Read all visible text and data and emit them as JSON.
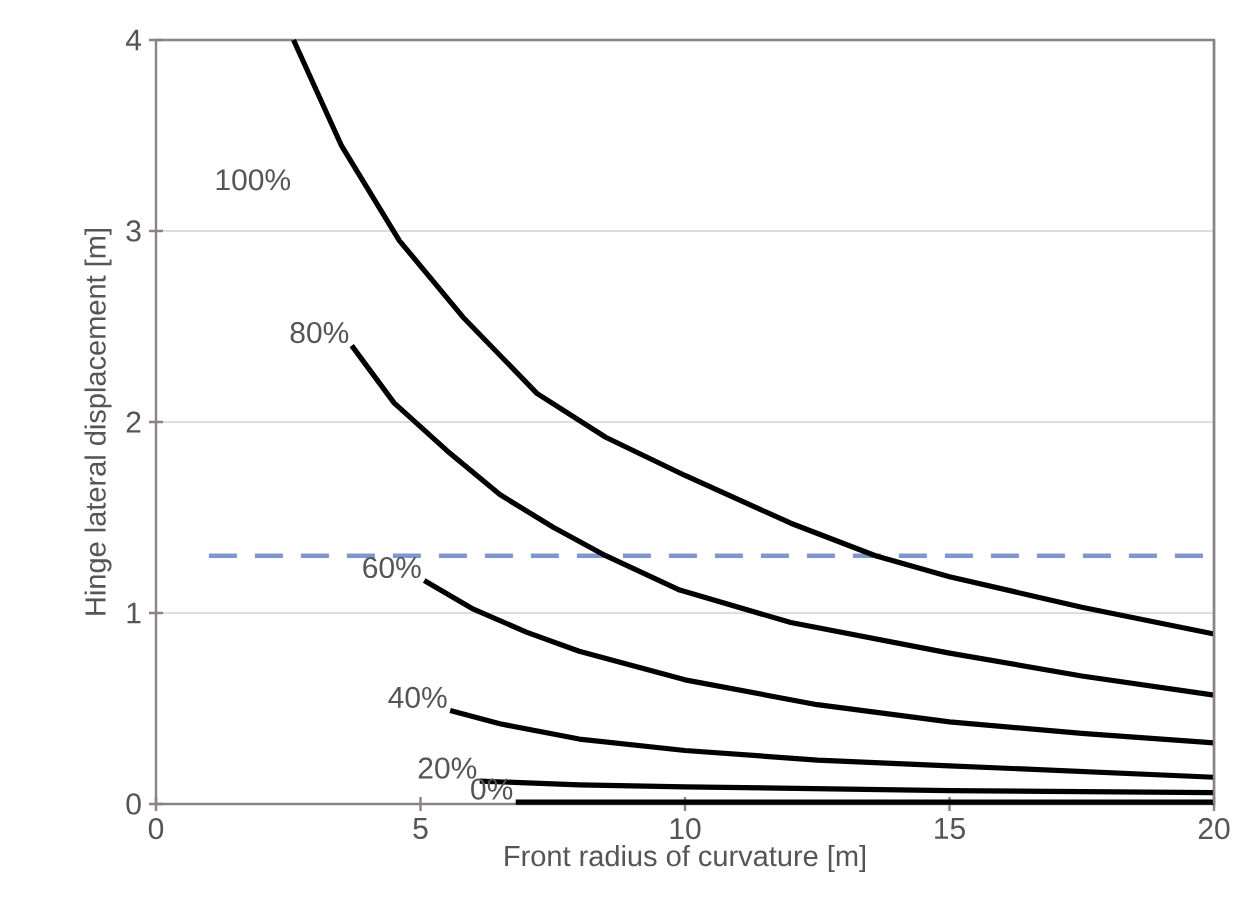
{
  "chart_data": {
    "type": "line",
    "xlabel": "Front radius of curvature [m]",
    "ylabel": "Hinge lateral displacement [m]",
    "xlim": [
      0,
      20
    ],
    "ylim": [
      0,
      4
    ],
    "xticks": [
      0,
      5,
      10,
      15,
      20
    ],
    "yticks": [
      0,
      1,
      2,
      3,
      4
    ],
    "grid": "y",
    "legend": false,
    "series": [
      {
        "name": "100%",
        "color": "#000000",
        "x": [
          2.6,
          3.5,
          4.6,
          5.8,
          7.2,
          8.5,
          10,
          12,
          13.6,
          15,
          17.5,
          20
        ],
        "values": [
          4,
          3.45,
          2.95,
          2.55,
          2.15,
          1.92,
          1.72,
          1.47,
          1.3,
          1.19,
          1.03,
          0.89
        ]
      },
      {
        "name": "80%",
        "color": "#000000",
        "x": [
          3.7,
          4.5,
          5.5,
          6.5,
          7.5,
          8.5,
          9.9,
          12,
          15,
          17.5,
          20
        ],
        "values": [
          2.4,
          2.1,
          1.85,
          1.62,
          1.45,
          1.3,
          1.12,
          0.95,
          0.79,
          0.67,
          0.57
        ]
      },
      {
        "name": "60%",
        "color": "#000000",
        "x": [
          5.07,
          6,
          7,
          8,
          10,
          12.5,
          15,
          17.5,
          20
        ],
        "values": [
          1.17,
          1.02,
          0.9,
          0.8,
          0.65,
          0.52,
          0.43,
          0.37,
          0.32
        ]
      },
      {
        "name": "40%",
        "color": "#000000",
        "x": [
          5.56,
          6.5,
          8,
          10,
          12.5,
          15,
          20
        ],
        "values": [
          0.49,
          0.42,
          0.34,
          0.28,
          0.23,
          0.2,
          0.14
        ]
      },
      {
        "name": "20%",
        "color": "#000000",
        "x": [
          6.12,
          8,
          10,
          15,
          20
        ],
        "values": [
          0.12,
          0.1,
          0.09,
          0.07,
          0.06
        ]
      },
      {
        "name": "0%",
        "color": "#000000",
        "x": [
          6.8,
          20
        ],
        "values": [
          0.01,
          0.01
        ]
      }
    ],
    "ref_lines": [
      {
        "axis": "y",
        "value": 1.3,
        "color": "#7f95cf",
        "line_style": "dashed"
      }
    ]
  }
}
